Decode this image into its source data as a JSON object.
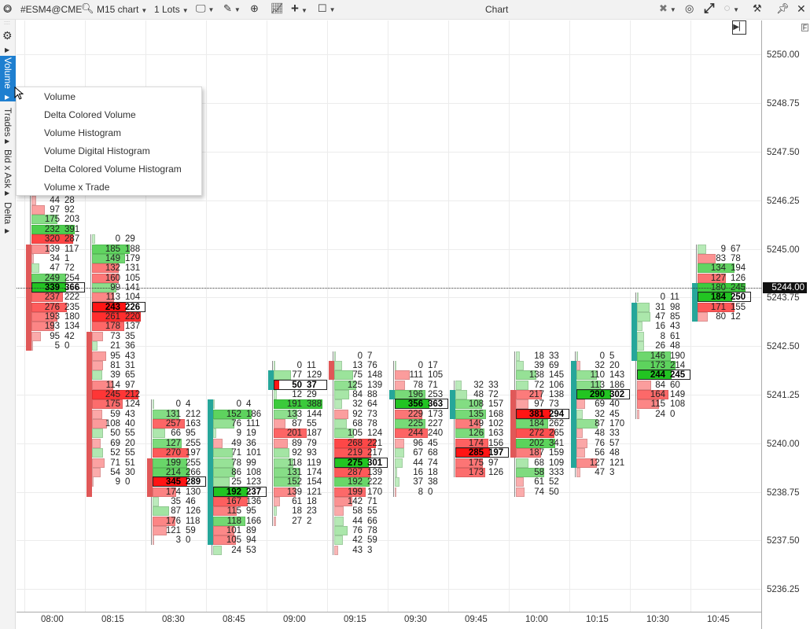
{
  "toolbar": {
    "symbol": "#ESM4@CME",
    "timeframe": "M15 chart",
    "lots": "1 Lots",
    "title": "Chart",
    "icons": [
      "app-logo-icon",
      "search-icon",
      "monitor-icon",
      "pencil-icon",
      "zoom-icon",
      "indicator-icon",
      "crosshair-icon",
      "template-icon",
      "cursor-sync-icon",
      "camera-icon",
      "fullscreen-icon",
      "circle-icon",
      "settings-tools-icon",
      "pin-icon",
      "close-icon"
    ]
  },
  "sidebar": {
    "items": [
      {
        "label": "Volume",
        "active": true
      },
      {
        "label": "Trades"
      },
      {
        "label": "Bid x Ask"
      },
      {
        "label": "Delta"
      }
    ]
  },
  "menu": {
    "items": [
      "Volume",
      "Delta Colored Volume",
      "Volume Histogram",
      "Volume Digital Histogram",
      "Delta Colored Volume Histogram",
      "Volume x Trade"
    ]
  },
  "colors": {
    "up": "#26a69a",
    "down": "#e05858",
    "buy": "#22c422",
    "sell": "#ff2020"
  },
  "chart_data": {
    "type": "footprint",
    "tick_size": 0.25,
    "ylim": [
      5236.0,
      5250.5
    ],
    "price_labels": [
      "5250.00",
      "5248.75",
      "5247.50",
      "5246.25",
      "5245.00",
      "5243.75",
      "5242.50",
      "5241.25",
      "5240.00",
      "5238.75",
      "5237.50",
      "5236.25"
    ],
    "current_price": "5244.00",
    "columns": [
      {
        "time": "08:00",
        "top": 5246.25,
        "poc": 5244.0,
        "open": 5245.0,
        "close": 5242.5,
        "rows": [
          [
            44,
            28
          ],
          [
            97,
            92
          ],
          [
            175,
            203
          ],
          [
            232,
            391
          ],
          [
            320,
            287
          ],
          [
            139,
            117
          ],
          [
            34,
            1
          ],
          [
            47,
            72
          ],
          [
            249,
            254
          ],
          [
            339,
            366
          ],
          [
            237,
            222
          ],
          [
            276,
            235
          ],
          [
            193,
            180
          ],
          [
            193,
            134
          ],
          [
            95,
            42
          ],
          [
            5,
            0
          ]
        ]
      },
      {
        "time": "08:15",
        "top": 5245.25,
        "poc": 5243.5,
        "open": 5242.75,
        "close": 5238.75,
        "rows": [
          [
            0,
            29
          ],
          [
            185,
            188
          ],
          [
            149,
            179
          ],
          [
            132,
            131
          ],
          [
            160,
            105
          ],
          [
            99,
            141
          ],
          [
            113,
            104
          ],
          [
            243,
            226
          ],
          [
            261,
            220
          ],
          [
            178,
            137
          ],
          [
            73,
            35
          ],
          [
            21,
            36
          ],
          [
            95,
            43
          ],
          [
            81,
            31
          ],
          [
            39,
            65
          ],
          [
            114,
            97
          ],
          [
            245,
            212
          ],
          [
            175,
            124
          ],
          [
            59,
            43
          ],
          [
            108,
            40
          ],
          [
            50,
            55
          ],
          [
            69,
            20
          ],
          [
            52,
            55
          ],
          [
            71,
            51
          ],
          [
            54,
            30
          ],
          [
            9,
            0
          ]
        ]
      },
      {
        "time": "08:30",
        "top": 5241.0,
        "poc": 5239.0,
        "open": 5239.5,
        "close": 5238.75,
        "rows": [
          [
            0,
            4
          ],
          [
            131,
            212
          ],
          [
            257,
            163
          ],
          [
            66,
            95
          ],
          [
            127,
            255
          ],
          [
            270,
            197
          ],
          [
            199,
            255
          ],
          [
            214,
            266
          ],
          [
            345,
            289
          ],
          [
            174,
            130
          ],
          [
            35,
            46
          ],
          [
            87,
            126
          ],
          [
            176,
            118
          ],
          [
            121,
            59
          ],
          [
            3,
            0
          ]
        ]
      },
      {
        "time": "08:45",
        "top": 5241.0,
        "poc": 5238.75,
        "open": 5237.5,
        "close": 5241.0,
        "rows": [
          [
            0,
            4
          ],
          [
            152,
            186
          ],
          [
            76,
            111
          ],
          [
            9,
            19
          ],
          [
            49,
            36
          ],
          [
            71,
            101
          ],
          [
            78,
            99
          ],
          [
            86,
            108
          ],
          [
            25,
            123
          ],
          [
            192,
            237
          ],
          [
            167,
            136
          ],
          [
            115,
            95
          ],
          [
            118,
            166
          ],
          [
            101,
            89
          ],
          [
            105,
            94
          ],
          [
            24,
            53
          ]
        ]
      },
      {
        "time": "09:00",
        "top": 5242.0,
        "poc": 5241.5,
        "open": 5241.5,
        "close": 5241.75,
        "rows": [
          [
            0,
            11
          ],
          [
            77,
            129
          ],
          [
            50,
            37
          ],
          [
            12,
            29
          ],
          [
            191,
            388
          ],
          [
            133,
            144
          ],
          [
            87,
            55
          ],
          [
            201,
            187
          ],
          [
            89,
            79
          ],
          [
            92,
            93
          ],
          [
            118,
            119
          ],
          [
            131,
            174
          ],
          [
            152,
            154
          ],
          [
            139,
            121
          ],
          [
            61,
            18
          ],
          [
            18,
            23
          ],
          [
            27,
            2
          ]
        ]
      },
      {
        "time": "09:15",
        "top": 5242.25,
        "poc": 5239.5,
        "open": 5242.0,
        "close": 5241.75,
        "rows": [
          [
            0,
            7
          ],
          [
            13,
            76
          ],
          [
            75,
            148
          ],
          [
            125,
            139
          ],
          [
            84,
            88
          ],
          [
            32,
            64
          ],
          [
            92,
            73
          ],
          [
            68,
            78
          ],
          [
            105,
            124
          ],
          [
            268,
            221
          ],
          [
            219,
            217
          ],
          [
            275,
            301
          ],
          [
            287,
            139
          ],
          [
            192,
            222
          ],
          [
            199,
            170
          ],
          [
            142,
            71
          ],
          [
            58,
            55
          ],
          [
            44,
            66
          ],
          [
            76,
            78
          ],
          [
            42,
            59
          ],
          [
            43,
            3
          ]
        ]
      },
      {
        "time": "09:30",
        "top": 5242.0,
        "poc": 5241.0,
        "open": 5241.25,
        "close": 5241.25,
        "rows": [
          [
            0,
            17
          ],
          [
            111,
            105
          ],
          [
            78,
            71
          ],
          [
            196,
            253
          ],
          [
            356,
            363
          ],
          [
            229,
            173
          ],
          [
            225,
            227
          ],
          [
            244,
            240
          ],
          [
            96,
            45
          ],
          [
            67,
            68
          ],
          [
            44,
            74
          ],
          [
            16,
            18
          ],
          [
            37,
            38
          ],
          [
            8,
            0
          ]
        ]
      },
      {
        "time": "09:45",
        "top": 5241.5,
        "poc": 5239.75,
        "open": 5240.75,
        "close": 5241.25,
        "rows": [
          [
            32,
            33
          ],
          [
            48,
            72
          ],
          [
            108,
            157
          ],
          [
            135,
            168
          ],
          [
            149,
            102
          ],
          [
            126,
            163
          ],
          [
            174,
            156
          ],
          [
            285,
            197
          ],
          [
            175,
            97
          ],
          [
            173,
            126
          ]
        ]
      },
      {
        "time": "10:00",
        "top": 5242.25,
        "poc": 5240.75,
        "open": 5241.25,
        "close": 5239.75,
        "rows": [
          [
            18,
            33
          ],
          [
            39,
            69
          ],
          [
            138,
            145
          ],
          [
            72,
            106
          ],
          [
            217,
            138
          ],
          [
            97,
            73
          ],
          [
            381,
            294
          ],
          [
            184,
            262
          ],
          [
            272,
            265
          ],
          [
            202,
            341
          ],
          [
            187,
            159
          ],
          [
            68,
            109
          ],
          [
            58,
            333
          ],
          [
            61,
            52
          ],
          [
            74,
            50
          ]
        ]
      },
      {
        "time": "10:15",
        "top": 5242.25,
        "poc": 5241.25,
        "open": 5239.5,
        "close": 5242.0,
        "rows": [
          [
            0,
            5
          ],
          [
            32,
            20
          ],
          [
            110,
            143
          ],
          [
            113,
            186
          ],
          [
            290,
            302
          ],
          [
            69,
            40
          ],
          [
            32,
            45
          ],
          [
            87,
            170
          ],
          [
            48,
            33
          ],
          [
            76,
            57
          ],
          [
            56,
            48
          ],
          [
            127,
            121
          ],
          [
            47,
            3
          ]
        ]
      },
      {
        "time": "10:30",
        "top": 5243.75,
        "poc": 5241.75,
        "open": 5242.25,
        "close": 5243.5,
        "rows": [
          [
            0,
            11
          ],
          [
            31,
            98
          ],
          [
            47,
            85
          ],
          [
            16,
            43
          ],
          [
            8,
            61
          ],
          [
            26,
            48
          ],
          [
            146,
            190
          ],
          [
            173,
            214
          ],
          [
            244,
            245
          ],
          [
            84,
            60
          ],
          [
            164,
            149
          ],
          [
            115,
            108
          ],
          [
            24,
            0
          ]
        ]
      },
      {
        "time": "10:45",
        "top": 5245.0,
        "poc": 5243.75,
        "open": 5243.25,
        "close": 5244.0,
        "rows": [
          [
            9,
            67
          ],
          [
            83,
            78
          ],
          [
            134,
            194
          ],
          [
            127,
            126
          ],
          [
            180,
            245
          ],
          [
            184,
            250
          ],
          [
            171,
            155
          ],
          [
            80,
            12
          ]
        ]
      }
    ]
  }
}
